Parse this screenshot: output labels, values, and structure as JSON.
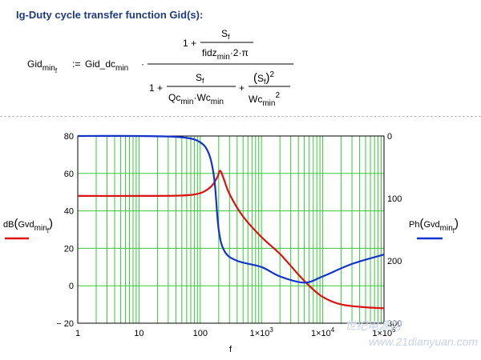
{
  "title": "Ig-Duty cycle transfer function Gid(s):",
  "formula": {
    "lhs_main": "Gid",
    "lhs_sub": "min",
    "lhs_subsub": "f",
    "assign": ":=",
    "gain_main": "Gid_dc",
    "gain_sub": "min",
    "dot": "·",
    "num_one": "1 +",
    "num_frac_top": "S",
    "num_frac_top_sub": "f",
    "num_frac_bot_main": "fidz",
    "num_frac_bot_sub": "min",
    "num_frac_bot_tail": "·2·π",
    "den_one": "1 +",
    "den_f1_top": "S",
    "den_f1_top_sub": "f",
    "den_f1_bot_a": "Qc",
    "den_f1_bot_a_sub": "min",
    "den_f1_bot_mid": "·Wc",
    "den_f1_bot_b_sub": "min",
    "den_plus": "+",
    "den_f2_top_paren_open": "(",
    "den_f2_top_s": "S",
    "den_f2_top_s_sub": "f",
    "den_f2_top_paren_close": ")",
    "den_f2_top_sup": "2",
    "den_f2_bot_main": "Wc",
    "den_f2_bot_sub": "min",
    "den_f2_bot_sup": "2"
  },
  "watermark": {
    "line1": "世纪电源网",
    "line2": "www.21dianyuan.com"
  },
  "chart_data": {
    "type": "line",
    "xlabel": "f",
    "xscale": "log",
    "xlim": [
      1,
      100000
    ],
    "x_tick_labels": [
      "1",
      "10",
      "100",
      "1×10",
      "1×10",
      "1×10"
    ],
    "x_tick_exponents": [
      "",
      "",
      "",
      "3",
      "4",
      "5"
    ],
    "x_tick_values": [
      1,
      10,
      100,
      1000,
      10000,
      100000
    ],
    "grid": true,
    "grid_color": "#33cc33",
    "left_axis": {
      "label_main": "dB",
      "label_inner": "Gvd",
      "label_sub": "min",
      "label_subsub": "f",
      "ylim": [
        -20,
        80
      ],
      "tick_values": [
        80,
        60,
        40,
        20,
        0,
        -20
      ],
      "tick_labels": [
        "80",
        "60",
        "40",
        "20",
        "0",
        "− 20"
      ]
    },
    "right_axis": {
      "label_main": "Ph",
      "label_inner": "Gvd",
      "label_sub": "min",
      "label_subsub": "f",
      "ylim_top_to_bottom": [
        0,
        300
      ],
      "tick_values": [
        0,
        100,
        200,
        300
      ],
      "tick_labels": [
        "0",
        "100",
        "200",
        "300"
      ]
    },
    "series": [
      {
        "axis": "left",
        "color": "#dd1111",
        "points": [
          [
            1,
            48
          ],
          [
            10,
            48
          ],
          [
            50,
            48.2
          ],
          [
            100,
            49.5
          ],
          [
            150,
            53
          ],
          [
            190,
            58
          ],
          [
            210,
            61.5
          ],
          [
            240,
            57.5
          ],
          [
            300,
            49
          ],
          [
            500,
            37
          ],
          [
            1000,
            26
          ],
          [
            2000,
            17
          ],
          [
            4000,
            6
          ],
          [
            6000,
            0
          ],
          [
            10000,
            -6
          ],
          [
            20000,
            -10
          ],
          [
            50000,
            -11.5
          ],
          [
            100000,
            -12
          ]
        ]
      },
      {
        "axis": "right",
        "color": "#1133cc",
        "points": [
          [
            1,
            0
          ],
          [
            10,
            0
          ],
          [
            50,
            2
          ],
          [
            100,
            10
          ],
          [
            140,
            30
          ],
          [
            170,
            70
          ],
          [
            200,
            150
          ],
          [
            250,
            185
          ],
          [
            400,
            200
          ],
          [
            1000,
            210
          ],
          [
            2000,
            225
          ],
          [
            5000,
            235
          ],
          [
            10000,
            225
          ],
          [
            30000,
            205
          ],
          [
            100000,
            190
          ]
        ]
      }
    ]
  }
}
